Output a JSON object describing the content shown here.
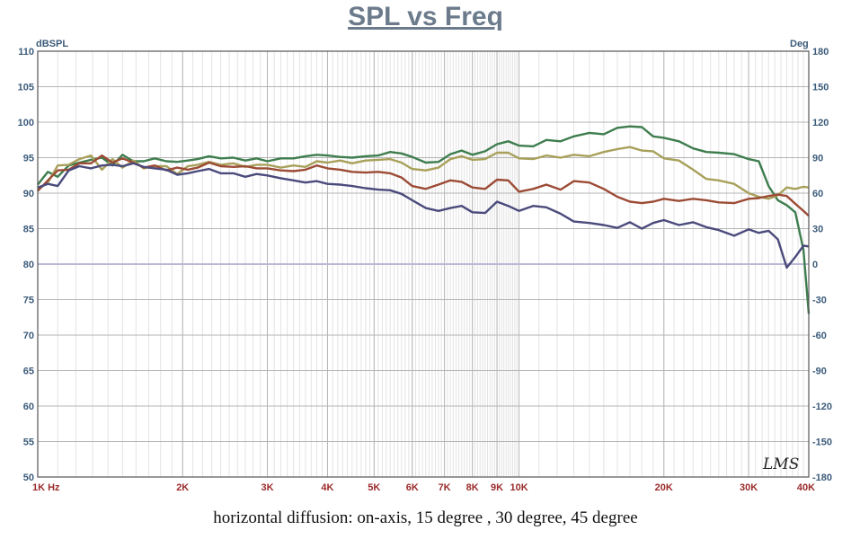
{
  "chart_data": {
    "type": "line",
    "title": "SPL vs Freq",
    "caption": "horizontal diffusion: on-axis, 15 degree , 30 degree, 45 degree",
    "left_unit": "dBSPL",
    "right_unit": "Deg",
    "logo": "LMS",
    "x_scale": "log",
    "xlim": [
      1000,
      40000
    ],
    "ylim": [
      50,
      110
    ],
    "y2lim": [
      -180,
      180
    ],
    "grid": true,
    "y_ticks": [
      "110",
      "105",
      "100",
      "95",
      "90",
      "85",
      "80",
      "75",
      "70",
      "65",
      "60",
      "55",
      "50"
    ],
    "y_tick_values": [
      110,
      105,
      100,
      95,
      90,
      85,
      80,
      75,
      70,
      65,
      60,
      55,
      50
    ],
    "y2_ticks": [
      "180",
      "150",
      "120",
      "90",
      "60",
      "30",
      "0",
      "-30",
      "-60",
      "-90",
      "-120",
      "-150",
      "-180"
    ],
    "y2_tick_values": [
      180,
      150,
      120,
      90,
      60,
      30,
      0,
      -30,
      -60,
      -90,
      -120,
      -150,
      -180
    ],
    "x_ticks": [
      "1K  Hz",
      "2K",
      "3K",
      "4K",
      "5K",
      "6K",
      "7K",
      "8K",
      "9K",
      "10K",
      "20K",
      "30K",
      "40K"
    ],
    "x_tick_values": [
      1000,
      2000,
      3000,
      4000,
      5000,
      6000,
      7000,
      8000,
      9000,
      10000,
      20000,
      30000,
      40000
    ],
    "reference_line_y": 80,
    "series": [
      {
        "color": "#3e7d4e",
        "x": [
          1000,
          1050,
          1100,
          1160,
          1220,
          1290,
          1360,
          1430,
          1500,
          1580,
          1660,
          1750,
          1850,
          1950,
          2050,
          2150,
          2270,
          2400,
          2550,
          2700,
          2850,
          3000,
          3200,
          3400,
          3600,
          3800,
          4000,
          4250,
          4500,
          4800,
          5100,
          5400,
          5700,
          6000,
          6400,
          6800,
          7200,
          7600,
          8000,
          8500,
          9000,
          9500,
          10000,
          10700,
          11400,
          12200,
          13000,
          14000,
          15000,
          16000,
          17000,
          18000,
          19000,
          20000,
          21500,
          23000,
          24500,
          26000,
          28000,
          30000,
          31500,
          33000,
          34500,
          36000,
          37500,
          39000,
          40000
        ],
        "y": [
          91.2,
          93.0,
          92.3,
          93.9,
          94.3,
          94.7,
          95.0,
          93.9,
          95.4,
          94.5,
          94.5,
          94.9,
          94.5,
          94.4,
          94.6,
          94.8,
          95.2,
          94.9,
          95.0,
          94.6,
          94.9,
          94.5,
          94.9,
          94.9,
          95.2,
          95.4,
          95.3,
          95.1,
          95.0,
          95.2,
          95.3,
          95.8,
          95.6,
          95.1,
          94.3,
          94.4,
          95.5,
          96.0,
          95.4,
          95.9,
          96.9,
          97.3,
          96.7,
          96.6,
          97.5,
          97.3,
          98.0,
          98.5,
          98.3,
          99.2,
          99.4,
          99.3,
          98.0,
          97.8,
          97.3,
          96.3,
          95.8,
          95.7,
          95.5,
          94.8,
          94.5,
          91.0,
          89.0,
          88.3,
          87.3,
          82.0,
          73.0
        ]
      },
      {
        "color": "#a8a05a",
        "x": [
          1000,
          1050,
          1100,
          1160,
          1220,
          1290,
          1360,
          1430,
          1500,
          1580,
          1660,
          1750,
          1850,
          1950,
          2050,
          2150,
          2270,
          2400,
          2550,
          2700,
          2850,
          3000,
          3200,
          3400,
          3600,
          3800,
          4000,
          4250,
          4500,
          4800,
          5100,
          5400,
          5700,
          6000,
          6400,
          6800,
          7200,
          7600,
          8000,
          8500,
          9000,
          9500,
          10000,
          10700,
          11400,
          12200,
          13000,
          14000,
          15000,
          16000,
          17000,
          18000,
          19000,
          20000,
          21500,
          23000,
          24500,
          26000,
          28000,
          30000,
          31500,
          33000,
          34500,
          36000,
          37500,
          39000,
          40000
        ],
        "y": [
          90.5,
          91.5,
          93.9,
          94.0,
          94.8,
          95.3,
          93.3,
          94.8,
          93.6,
          94.6,
          93.5,
          93.8,
          93.8,
          92.7,
          93.8,
          94.0,
          94.4,
          94.0,
          94.2,
          93.7,
          94.0,
          94.0,
          93.6,
          93.9,
          93.7,
          94.5,
          94.3,
          94.6,
          94.2,
          94.6,
          94.7,
          94.8,
          94.3,
          93.4,
          93.2,
          93.6,
          94.8,
          95.2,
          94.7,
          94.8,
          95.7,
          95.7,
          94.9,
          94.8,
          95.3,
          95.0,
          95.4,
          95.2,
          95.8,
          96.2,
          96.5,
          96.0,
          95.9,
          94.9,
          94.6,
          93.3,
          92.0,
          91.8,
          91.3,
          90.0,
          89.5,
          89.2,
          89.7,
          90.8,
          90.6,
          90.9,
          90.8
        ]
      },
      {
        "color": "#9c4b35",
        "x": [
          1000,
          1050,
          1100,
          1160,
          1220,
          1290,
          1360,
          1430,
          1500,
          1580,
          1660,
          1750,
          1850,
          1950,
          2050,
          2150,
          2270,
          2400,
          2550,
          2700,
          2850,
          3000,
          3200,
          3400,
          3600,
          3800,
          4000,
          4250,
          4500,
          4800,
          5100,
          5400,
          5700,
          6000,
          6400,
          6800,
          7200,
          7600,
          8000,
          8500,
          9000,
          9500,
          10000,
          10700,
          11400,
          12200,
          13000,
          14000,
          15000,
          16000,
          17000,
          18000,
          19000,
          20000,
          21500,
          23000,
          24500,
          26000,
          28000,
          30000,
          31500,
          33000,
          34500,
          36000,
          37500,
          39000,
          40000
        ],
        "y": [
          90.3,
          91.8,
          93.2,
          93.3,
          94.2,
          94.2,
          95.3,
          94.3,
          94.9,
          94.3,
          93.6,
          93.9,
          93.2,
          93.6,
          93.3,
          93.6,
          94.3,
          93.8,
          93.7,
          93.8,
          93.5,
          93.5,
          93.2,
          93.1,
          93.3,
          93.9,
          93.5,
          93.3,
          93.0,
          92.9,
          93.0,
          92.8,
          92.2,
          91.0,
          90.6,
          91.2,
          91.8,
          91.6,
          90.8,
          90.6,
          91.9,
          91.8,
          90.2,
          90.6,
          91.2,
          90.5,
          91.7,
          91.5,
          90.6,
          89.5,
          88.8,
          88.6,
          88.8,
          89.2,
          88.9,
          89.2,
          89.0,
          88.7,
          88.6,
          89.2,
          89.3,
          89.6,
          89.8,
          89.6,
          88.5,
          87.5,
          86.8
        ]
      },
      {
        "color": "#4a4a7c",
        "x": [
          1000,
          1050,
          1100,
          1160,
          1220,
          1290,
          1360,
          1430,
          1500,
          1580,
          1660,
          1750,
          1850,
          1950,
          2050,
          2150,
          2270,
          2400,
          2550,
          2700,
          2850,
          3000,
          3200,
          3400,
          3600,
          3800,
          4000,
          4250,
          4500,
          4800,
          5100,
          5400,
          5700,
          6000,
          6400,
          6800,
          7200,
          7600,
          8000,
          8500,
          9000,
          9500,
          10000,
          10700,
          11400,
          12200,
          13000,
          14000,
          15000,
          16000,
          17000,
          18000,
          19000,
          20000,
          21500,
          23000,
          24500,
          26000,
          28000,
          30000,
          31500,
          33000,
          34500,
          36000,
          37500,
          39000,
          40000
        ],
        "y": [
          90.8,
          91.3,
          91.0,
          93.2,
          93.8,
          93.5,
          93.9,
          94.0,
          93.8,
          94.2,
          93.7,
          93.5,
          93.3,
          92.6,
          92.8,
          93.1,
          93.4,
          92.8,
          92.8,
          92.3,
          92.7,
          92.5,
          92.1,
          91.8,
          91.5,
          91.7,
          91.3,
          91.2,
          91.0,
          90.7,
          90.5,
          90.4,
          89.9,
          89.0,
          87.9,
          87.5,
          87.9,
          88.2,
          87.3,
          87.2,
          88.8,
          88.2,
          87.5,
          88.2,
          88.0,
          87.1,
          86.0,
          85.8,
          85.5,
          85.1,
          85.9,
          85.0,
          85.8,
          86.2,
          85.5,
          85.9,
          85.2,
          84.8,
          84.0,
          84.9,
          84.4,
          84.7,
          83.5,
          79.5,
          81.0,
          82.6,
          82.5
        ]
      }
    ]
  }
}
